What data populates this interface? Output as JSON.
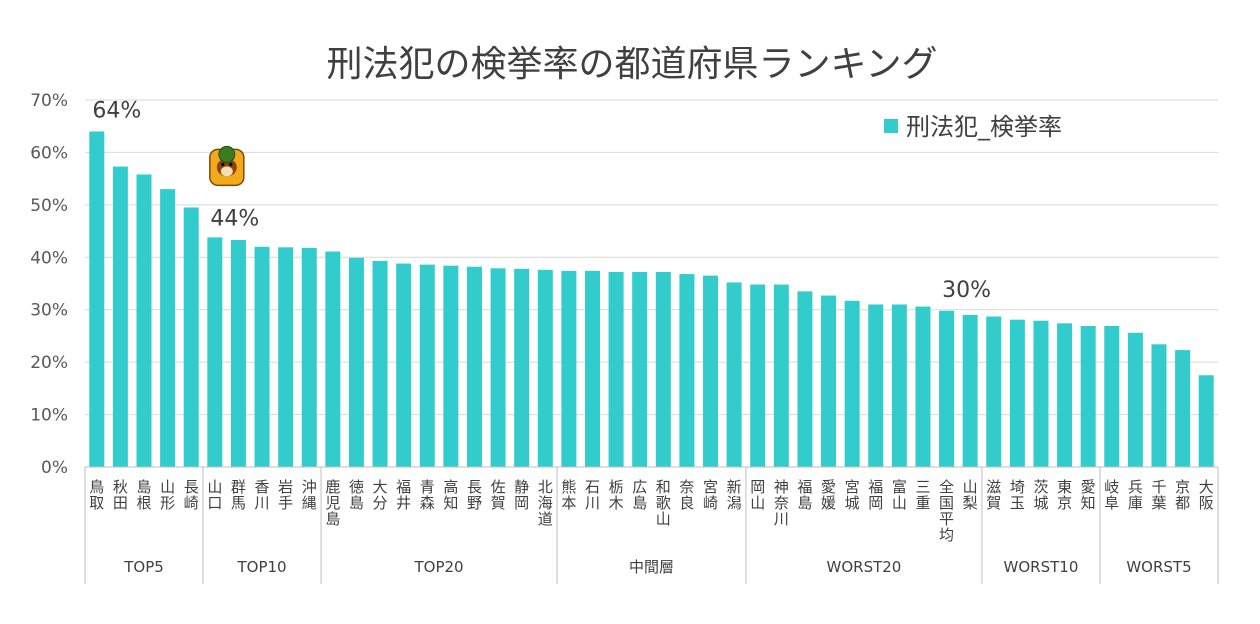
{
  "chart_data": {
    "type": "bar",
    "title": "刑法犯の検挙率の都道府県ランキング",
    "legend": {
      "label": "刑法犯_検挙率",
      "position": "top-right"
    },
    "series": [
      {
        "name": "刑法犯_検挙率",
        "color": "#33CCCC",
        "values": [
          64.0,
          57.3,
          55.8,
          53.0,
          49.5,
          43.8,
          43.3,
          42.0,
          41.9,
          41.8,
          41.1,
          39.9,
          39.3,
          38.8,
          38.6,
          38.4,
          38.2,
          37.9,
          37.8,
          37.6,
          37.4,
          37.4,
          37.2,
          37.2,
          37.2,
          36.8,
          36.5,
          35.2,
          34.8,
          34.8,
          33.5,
          32.7,
          31.7,
          31.0,
          31.0,
          30.6,
          29.8,
          29.0,
          28.7,
          28.1,
          27.9,
          27.4,
          26.9,
          26.9,
          25.6,
          23.4,
          22.3,
          17.5
        ]
      }
    ],
    "categories": [
      "鳥取",
      "秋田",
      "島根",
      "山形",
      "長崎",
      "山口",
      "群馬",
      "香川",
      "岩手",
      "沖縄",
      "鹿児島",
      "徳島",
      "大分",
      "福井",
      "青森",
      "高知",
      "長野",
      "佐賀",
      "静岡",
      "北海道",
      "熊本",
      "石川",
      "栃木",
      "広島",
      "和歌山",
      "奈良",
      "宮崎",
      "新潟",
      "岡山",
      "神奈川",
      "福島",
      "愛媛",
      "宮城",
      "福岡",
      "富山",
      "三重",
      "全国平均",
      "山梨",
      "滋賀",
      "埼玉",
      "茨城",
      "東京",
      "愛知",
      "岐阜",
      "兵庫",
      "千葉",
      "京都",
      "大阪"
    ],
    "groups": [
      {
        "label": "TOP5",
        "count": 5
      },
      {
        "label": "TOP10",
        "count": 5
      },
      {
        "label": "TOP20",
        "count": 10
      },
      {
        "label": "中間層",
        "count": 8
      },
      {
        "label": "WORST20",
        "count": 10
      },
      {
        "label": "WORST10",
        "count": 5
      },
      {
        "label": "WORST5",
        "count": 5
      }
    ],
    "yticks": [
      "0%",
      "10%",
      "20%",
      "30%",
      "40%",
      "50%",
      "60%",
      "70%"
    ],
    "ylim": [
      0,
      70
    ],
    "grid": true,
    "annotations": [
      {
        "text": "64%",
        "index": 0
      },
      {
        "text": "44%",
        "index": 5,
        "icon": "mascot-icon"
      },
      {
        "text": "30%",
        "index": 36
      }
    ]
  }
}
